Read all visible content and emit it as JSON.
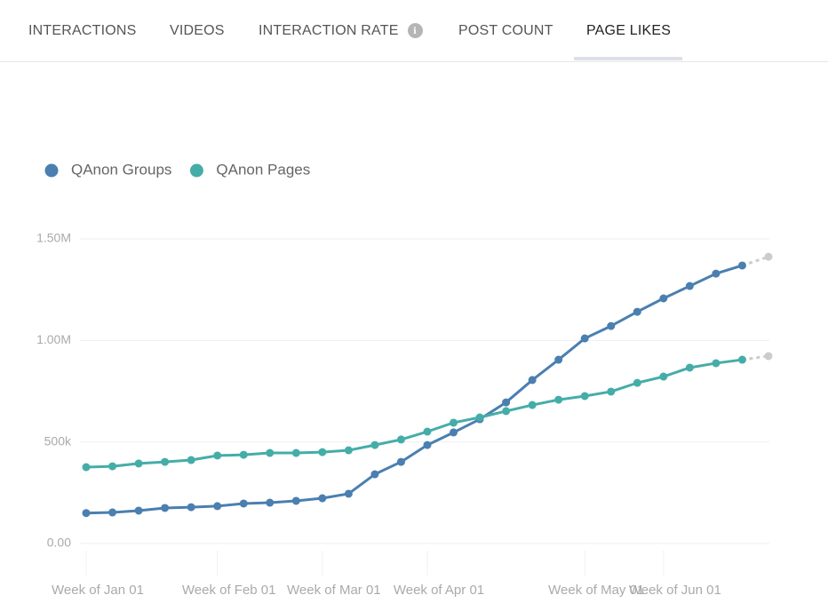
{
  "tabs": [
    "INTERACTIONS",
    "VIDEOS",
    "INTERACTION RATE",
    "POST COUNT",
    "PAGE LIKES"
  ],
  "active_tab": 4,
  "chart_data": {
    "type": "line",
    "categories": [
      "Week of Jan 01",
      null,
      null,
      null,
      null,
      "Week of Feb 01",
      null,
      null,
      null,
      "Week of Mar 01",
      null,
      null,
      null,
      "Week of Apr 01",
      null,
      null,
      null,
      null,
      null,
      "Week of May 01",
      null,
      null,
      "Week of Jun 01",
      null,
      null,
      null,
      null
    ],
    "series": [
      {
        "name": "QAnon Groups",
        "color": "#4a7fb0",
        "values": [
          150000,
          153000,
          162000,
          175000,
          179000,
          184000,
          197000,
          201000,
          210000,
          223000,
          245000,
          341000,
          402000,
          485000,
          547000,
          612000,
          695000,
          805000,
          905000,
          1010000,
          1071000,
          1141000,
          1207000,
          1268000,
          1329000,
          1369000,
          1412000
        ]
      },
      {
        "name": "QAnon Pages",
        "color": "#45ada8",
        "values": [
          376000,
          380000,
          394000,
          402000,
          411000,
          433000,
          437000,
          446000,
          446000,
          450000,
          459000,
          485000,
          512000,
          551000,
          595000,
          621000,
          652000,
          682000,
          708000,
          726000,
          748000,
          791000,
          822000,
          866000,
          888000,
          905000,
          923000
        ]
      }
    ],
    "ylim": [
      0,
      1500000
    ],
    "yticks": [
      {
        "value": 0,
        "label": "0.00"
      },
      {
        "value": 500000,
        "label": "500k"
      },
      {
        "value": 1000000,
        "label": "1.00M"
      },
      {
        "value": 1500000,
        "label": "1.50M"
      }
    ],
    "grid": true,
    "legend": "top-left",
    "incomplete_color": "#cccccc"
  }
}
